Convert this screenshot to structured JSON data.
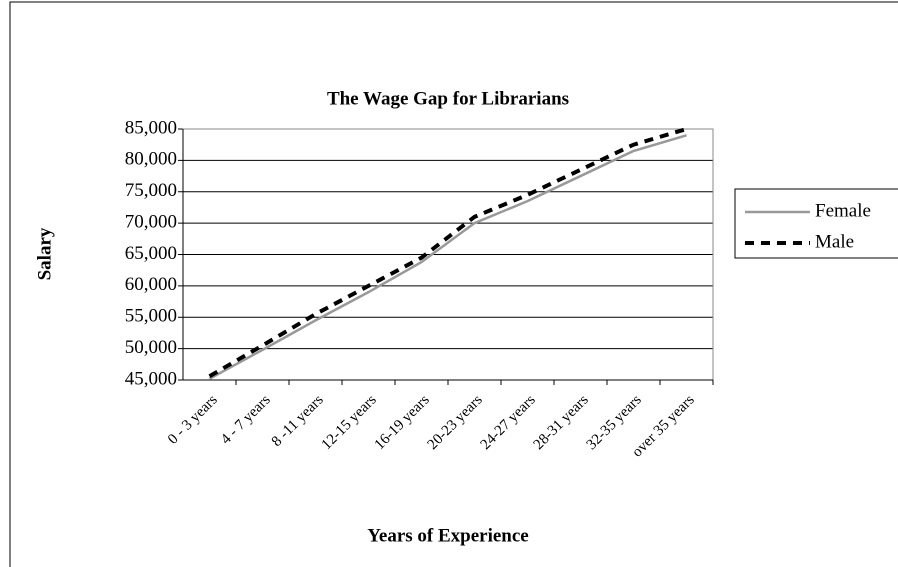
{
  "chart_data": {
    "type": "line",
    "title": "The Wage Gap for Librarians",
    "x_label": "Years of Experience",
    "y_label": "Salary",
    "categories": [
      "0 - 3 years",
      "4 - 7 years",
      "8 -11 years",
      "12-15 years",
      "16-19 years",
      "20-23 years",
      "24-27 years",
      "28-31 years",
      "32-35 years",
      "over 35 years"
    ],
    "series": [
      {
        "name": "Female",
        "color": "#999999",
        "dash": false,
        "values": [
          45200,
          49800,
          54500,
          59000,
          63800,
          70000,
          73500,
          77500,
          81500,
          84000
        ]
      },
      {
        "name": "Male",
        "color": "#000000",
        "dash": true,
        "values": [
          45600,
          50500,
          55500,
          60000,
          64500,
          71000,
          74500,
          78500,
          82500,
          85000
        ]
      }
    ],
    "ylim": [
      45000,
      85000
    ],
    "yticks": [
      {
        "value": 45000,
        "label": "45,000"
      },
      {
        "value": 50000,
        "label": "50,000"
      },
      {
        "value": 55000,
        "label": "55,000"
      },
      {
        "value": 60000,
        "label": "60,000"
      },
      {
        "value": 65000,
        "label": "65,000"
      },
      {
        "value": 70000,
        "label": "70,000"
      },
      {
        "value": 75000,
        "label": "75,000"
      },
      {
        "value": 80000,
        "label": "80,000"
      },
      {
        "value": 85000,
        "label": "85,000"
      }
    ],
    "grid": true,
    "legend": "right"
  }
}
